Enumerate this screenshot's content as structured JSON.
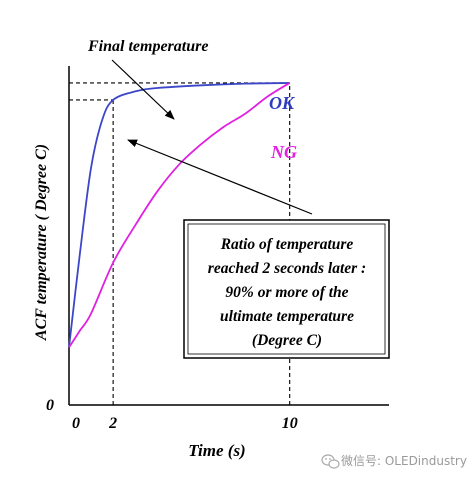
{
  "chart_data": {
    "type": "line",
    "title": "",
    "xlabel": "Time (s)",
    "ylabel": "ACF temperature ( Degree C)",
    "xlim": [
      0,
      14.5
    ],
    "ylim": [
      0,
      100
    ],
    "x_ticks": [
      {
        "value": 0,
        "label": "0"
      },
      {
        "value": 2,
        "label": "2"
      },
      {
        "value": 10,
        "label": "10"
      }
    ],
    "y_ticks": [
      {
        "value": 0,
        "label": "0"
      }
    ],
    "grid": false,
    "legend": "inline labels",
    "series": [
      {
        "name": "OK",
        "color": "#3b47c8",
        "points": [
          [
            0,
            17
          ],
          [
            0.5,
            45
          ],
          [
            1,
            70
          ],
          [
            1.5,
            84
          ],
          [
            2,
            90
          ],
          [
            3,
            92.5
          ],
          [
            4,
            93.5
          ],
          [
            6,
            94.3
          ],
          [
            8,
            94.8
          ],
          [
            10,
            95
          ]
        ]
      },
      {
        "name": "NG",
        "color": "#e020e0",
        "points": [
          [
            0,
            17
          ],
          [
            0.5,
            22
          ],
          [
            1,
            27
          ],
          [
            2,
            42
          ],
          [
            3,
            53
          ],
          [
            4,
            63
          ],
          [
            5,
            71
          ],
          [
            6,
            77
          ],
          [
            7,
            82
          ],
          [
            8,
            86
          ],
          [
            9,
            91
          ],
          [
            10,
            95
          ]
        ]
      }
    ],
    "reference_lines": [
      {
        "kind": "horizontal",
        "y": 95,
        "x_from": 0,
        "x_to": 10
      },
      {
        "kind": "horizontal",
        "y": 90,
        "x_from": 0,
        "x_to": 2
      },
      {
        "kind": "vertical",
        "x": 2,
        "y_from": 0,
        "y_to": 90
      },
      {
        "kind": "vertical",
        "x": 10,
        "y_from": 0,
        "y_to": 95
      }
    ],
    "annotations": {
      "final_temperature": "Final temperature",
      "ratio_box": [
        "Ratio of temperature",
        "reached 2 seconds later :",
        "90% or more of the",
        "ultimate temperature",
        "(Degree C)"
      ]
    }
  },
  "watermark": {
    "icon": "wechat-icon",
    "text": "微信号: OLEDindustry"
  }
}
